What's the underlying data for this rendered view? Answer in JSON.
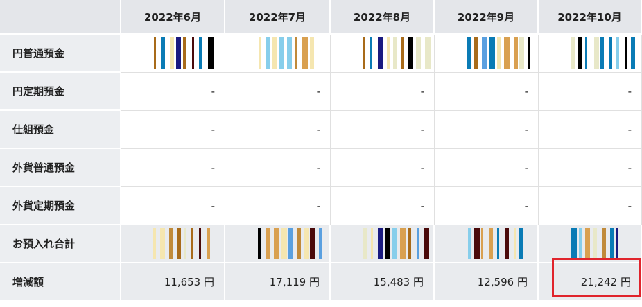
{
  "table": {
    "columns": [
      "2022年6月",
      "2022年7月",
      "2022年8月",
      "2022年9月",
      "2022年10月"
    ],
    "rows": [
      {
        "label": "円普通預金"
      },
      {
        "label": "円定期預金",
        "cells": [
          "-",
          "-",
          "-",
          "-",
          "-"
        ]
      },
      {
        "label": "仕組預金",
        "cells": [
          "-",
          "-",
          "-",
          "-",
          "-"
        ]
      },
      {
        "label": "外貨普通預金",
        "cells": [
          "-",
          "-",
          "-",
          "-",
          "-"
        ]
      },
      {
        "label": "外貨定期預金",
        "cells": [
          "-",
          "-",
          "-",
          "-",
          "-"
        ]
      },
      {
        "label": "お預入れ合計"
      },
      {
        "label": "増減額",
        "cells": [
          "11,653 円",
          "17,119 円",
          "15,483 円",
          "12,596 円",
          "21,242 円"
        ]
      }
    ]
  }
}
